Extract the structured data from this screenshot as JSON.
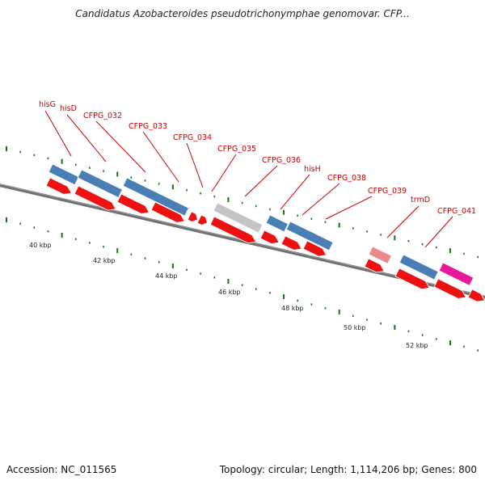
{
  "title": "Candidatus Azobacteroides pseudotrichonymphae genomovar. CFP...",
  "footer": {
    "accession_label": "Accession:",
    "accession": "NC_011565",
    "topology_label": "Topology:",
    "topology": "circular;",
    "length_label": "Length:",
    "length": "1,114,206 bp;",
    "genes_label": "Genes:",
    "genes": "800"
  },
  "ruler": {
    "labels": [
      "40 kbp",
      "42 kbp",
      "44 kbp",
      "46 kbp",
      "48 kbp",
      "50 kbp",
      "52 kbp"
    ]
  },
  "colors": {
    "cds": "#ee1111",
    "cds_light": "#f08080",
    "blue": "#4a7fb5",
    "gray": "#c4c4c4",
    "pink": "#e8189a",
    "salmon": "#ea8a8a",
    "label": "#cc0000",
    "tick": "#117711",
    "backbone": "#707070"
  },
  "gene_labels": [
    "hisG",
    "hisD",
    "CFPG_032",
    "CFPG_033",
    "CFPG_034",
    "CFPG_035",
    "CFPG_036",
    "hisH",
    "CFPG_038",
    "CFPG_039",
    "trmD",
    "CFPG_041"
  ]
}
